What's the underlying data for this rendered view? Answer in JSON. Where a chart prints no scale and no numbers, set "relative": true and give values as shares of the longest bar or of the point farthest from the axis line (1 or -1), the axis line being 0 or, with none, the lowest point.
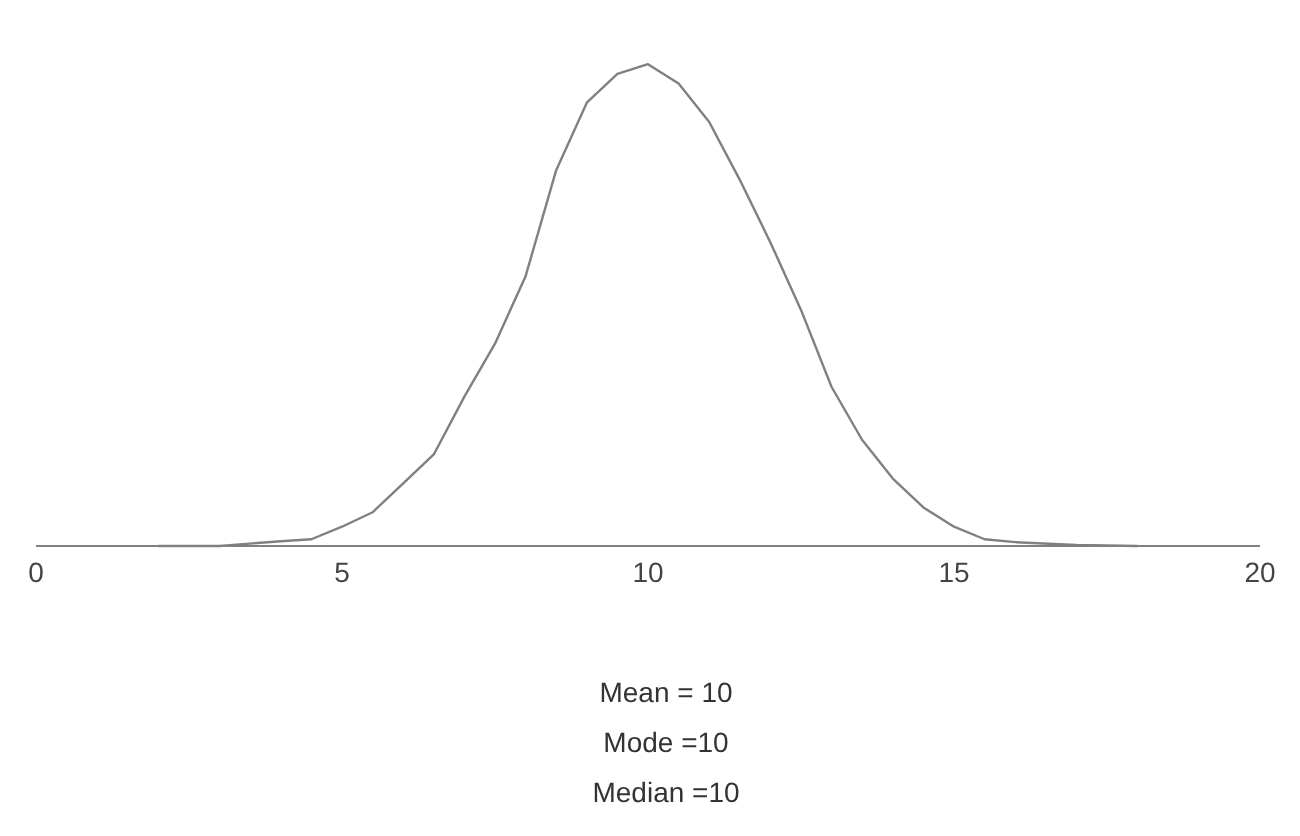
{
  "chart_data": {
    "type": "line",
    "relative": true,
    "color": "#808080",
    "marker": "none",
    "grid": false,
    "legend": false,
    "x": [
      2,
      3,
      4,
      4.5,
      5,
      5.5,
      6,
      6.5,
      7,
      7.5,
      8,
      8.5,
      9,
      9.5,
      10,
      10.5,
      11,
      11.5,
      12,
      12.5,
      13,
      13.5,
      14,
      14.5,
      15,
      15.5,
      16,
      17,
      18
    ],
    "values": [
      0,
      0,
      0.01,
      0.014,
      0.04,
      0.07,
      0.13,
      0.19,
      0.31,
      0.42,
      0.56,
      0.78,
      0.92,
      0.98,
      1,
      0.96,
      0.88,
      0.76,
      0.63,
      0.49,
      0.33,
      0.22,
      0.14,
      0.08,
      0.04,
      0.014,
      0.008,
      0.002,
      0
    ],
    "xlim": [
      0,
      20
    ],
    "xticks": [
      0,
      5,
      10,
      15,
      20
    ],
    "annotations": [
      "Mean = 10",
      "Mode =10",
      "Median =10"
    ]
  }
}
